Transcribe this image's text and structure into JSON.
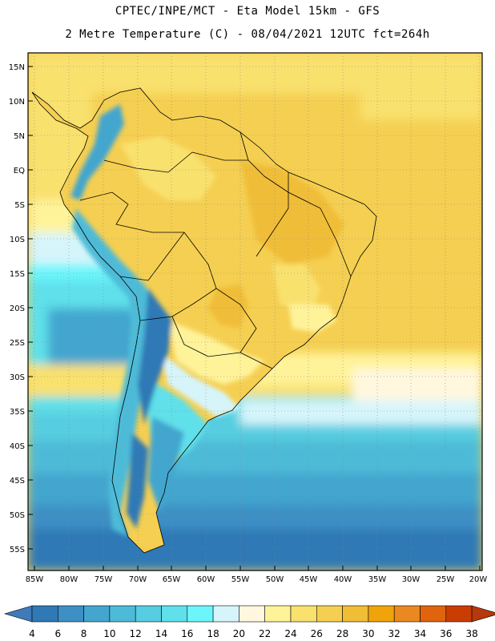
{
  "header": {
    "line1": "CPTEC/INPE/MCT -  Eta Model 15km - GFS",
    "line2": "2 Metre Temperature (C) - 08/04/2021 12UTC fct=264h"
  },
  "axes": {
    "lon_labels": [
      "85W",
      "80W",
      "75W",
      "70W",
      "65W",
      "60W",
      "55W",
      "50W",
      "45W",
      "40W",
      "35W",
      "30W",
      "25W",
      "20W"
    ],
    "lat_labels": [
      "15N",
      "10N",
      "5N",
      "EQ",
      "5S",
      "10S",
      "15S",
      "20S",
      "25S",
      "30S",
      "35S",
      "40S",
      "45S",
      "50S",
      "55S"
    ],
    "lon_range": [
      -86,
      -19.5
    ],
    "lat_range": [
      17.5,
      -58.5
    ]
  },
  "colorbar": {
    "levels": [
      "4",
      "6",
      "8",
      "10",
      "12",
      "14",
      "16",
      "18",
      "20",
      "22",
      "24",
      "26",
      "28",
      "30",
      "32",
      "34",
      "36",
      "38"
    ],
    "colors": [
      "#3f7bb9",
      "#2f79b6",
      "#3d8fc4",
      "#43a6cf",
      "#4dbbd8",
      "#56cde0",
      "#5fe0ea",
      "#6cf6fc",
      "#d6f5fb",
      "#fff8df",
      "#fff39a",
      "#f9e16e",
      "#f5cf51",
      "#f0bd37",
      "#f1a30a",
      "#ea8921",
      "#e0630d",
      "#c93d03",
      "#b7380a"
    ]
  }
}
